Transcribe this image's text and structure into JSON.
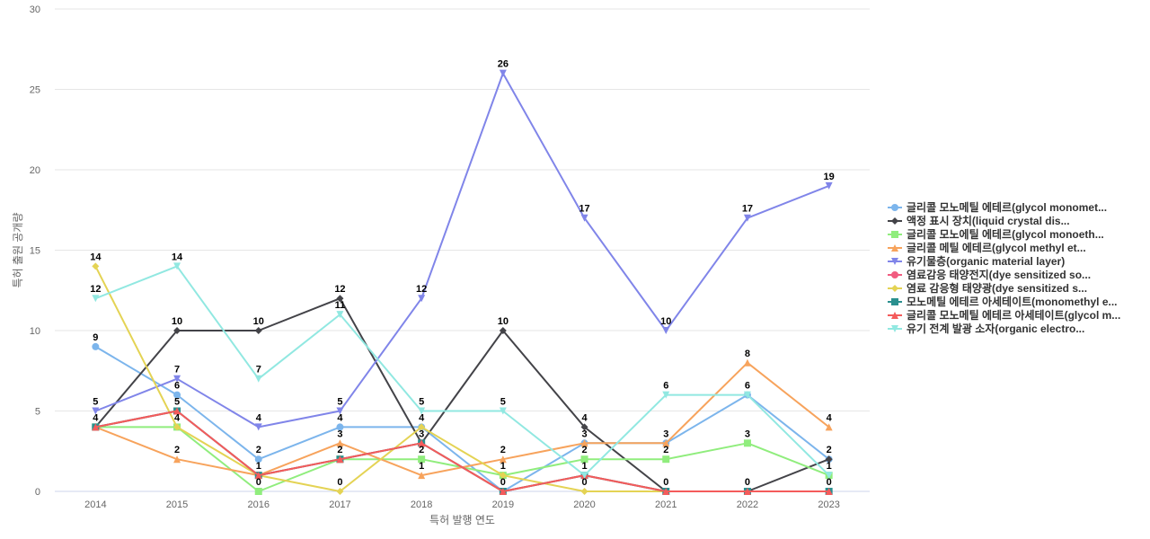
{
  "chart_data": {
    "type": "line",
    "title": "",
    "xlabel": "특허 발행 연도",
    "ylabel": "특허 출원 공개량",
    "categories": [
      "2014",
      "2015",
      "2016",
      "2017",
      "2018",
      "2019",
      "2020",
      "2021",
      "2022",
      "2023"
    ],
    "ylim": [
      0,
      30
    ],
    "yticks": [
      0,
      5,
      10,
      15,
      20,
      25,
      30
    ],
    "grid": true,
    "legend_position": "right",
    "series": [
      {
        "name": "글리콜 모노메틸 에테르(glycol monomet...",
        "color": "#7cb5ec",
        "marker": "circle",
        "values": [
          9,
          6,
          2,
          4,
          4,
          0,
          3,
          3,
          6,
          2
        ]
      },
      {
        "name": "액정 표시 장치(liquid crystal dis...",
        "color": "#434348",
        "marker": "diamond",
        "values": [
          4,
          10,
          10,
          12,
          3,
          10,
          4,
          0,
          0,
          2
        ]
      },
      {
        "name": "글리콜 모노에틸 에테르(glycol monoeth...",
        "color": "#90ed7d",
        "marker": "square",
        "values": [
          4,
          4,
          0,
          2,
          2,
          1,
          2,
          2,
          3,
          1
        ]
      },
      {
        "name": "글리콜 메틸 에테르(glycol methyl et...",
        "color": "#f7a35c",
        "marker": "triangle",
        "values": [
          4,
          2,
          1,
          3,
          1,
          2,
          3,
          3,
          8,
          4
        ]
      },
      {
        "name": "유기물층(organic material layer)",
        "color": "#8085e9",
        "marker": "triangle-down",
        "values": [
          5,
          7,
          4,
          5,
          12,
          26,
          17,
          10,
          17,
          19
        ]
      },
      {
        "name": "염료감응 태양전지(dye sensitized so...",
        "color": "#f15c80",
        "marker": "circle",
        "values": [
          4,
          5,
          1,
          2,
          3,
          0,
          1,
          0,
          0,
          0
        ]
      },
      {
        "name": "염료 감응형 태양광(dye sensitized s...",
        "color": "#e4d354",
        "marker": "diamond",
        "values": [
          14,
          4,
          1,
          0,
          4,
          1,
          0,
          0,
          0,
          0
        ]
      },
      {
        "name": "모노메틸 에테르 아세테이트(monomethyl e...",
        "color": "#2b908f",
        "marker": "square",
        "values": [
          4,
          5,
          1,
          2,
          3,
          0,
          1,
          0,
          0,
          0
        ]
      },
      {
        "name": "글리콜 모노메틸 에테르 아세테이트(glycol m...",
        "color": "#f45b5b",
        "marker": "triangle",
        "values": [
          4,
          5,
          1,
          2,
          3,
          0,
          1,
          0,
          0,
          0
        ]
      },
      {
        "name": "유기 전계 발광 소자(organic electro...",
        "color": "#91e8e1",
        "marker": "triangle-down",
        "values": [
          12,
          14,
          7,
          11,
          5,
          5,
          1,
          6,
          6,
          1
        ]
      }
    ],
    "point_labels": [
      {
        "category": "2014",
        "value": 14,
        "text": "14"
      },
      {
        "category": "2014",
        "value": 12,
        "text": "12"
      },
      {
        "category": "2014",
        "value": 9,
        "text": "9"
      },
      {
        "category": "2014",
        "value": 5,
        "text": "5"
      },
      {
        "category": "2014",
        "value": 4,
        "text": "4"
      },
      {
        "category": "2015",
        "value": 14,
        "text": "14"
      },
      {
        "category": "2015",
        "value": 10,
        "text": "10"
      },
      {
        "category": "2015",
        "value": 7,
        "text": "7"
      },
      {
        "category": "2015",
        "value": 6,
        "text": "6"
      },
      {
        "category": "2015",
        "value": 5,
        "text": "5"
      },
      {
        "category": "2015",
        "value": 4,
        "text": "4"
      },
      {
        "category": "2015",
        "value": 2,
        "text": "2"
      },
      {
        "category": "2016",
        "value": 10,
        "text": "10"
      },
      {
        "category": "2016",
        "value": 7,
        "text": "7"
      },
      {
        "category": "2016",
        "value": 4,
        "text": "4"
      },
      {
        "category": "2016",
        "value": 2,
        "text": "2"
      },
      {
        "category": "2016",
        "value": 1,
        "text": "1"
      },
      {
        "category": "2016",
        "value": 0,
        "text": "0"
      },
      {
        "category": "2017",
        "value": 12,
        "text": "12"
      },
      {
        "category": "2017",
        "value": 11,
        "text": "11"
      },
      {
        "category": "2017",
        "value": 5,
        "text": "5"
      },
      {
        "category": "2017",
        "value": 4,
        "text": "4"
      },
      {
        "category": "2017",
        "value": 3,
        "text": "3"
      },
      {
        "category": "2017",
        "value": 2,
        "text": "2"
      },
      {
        "category": "2017",
        "value": 0,
        "text": "0"
      },
      {
        "category": "2018",
        "value": 12,
        "text": "12"
      },
      {
        "category": "2018",
        "value": 5,
        "text": "5"
      },
      {
        "category": "2018",
        "value": 4,
        "text": "4"
      },
      {
        "category": "2018",
        "value": 3,
        "text": "3"
      },
      {
        "category": "2018",
        "value": 2,
        "text": "2"
      },
      {
        "category": "2018",
        "value": 1,
        "text": "1"
      },
      {
        "category": "2019",
        "value": 26,
        "text": "26"
      },
      {
        "category": "2019",
        "value": 10,
        "text": "10"
      },
      {
        "category": "2019",
        "value": 5,
        "text": "5"
      },
      {
        "category": "2019",
        "value": 2,
        "text": "2"
      },
      {
        "category": "2019",
        "value": 1,
        "text": "1"
      },
      {
        "category": "2019",
        "value": 0,
        "text": "0"
      },
      {
        "category": "2020",
        "value": 17,
        "text": "17"
      },
      {
        "category": "2020",
        "value": 4,
        "text": "4"
      },
      {
        "category": "2020",
        "value": 3,
        "text": "3"
      },
      {
        "category": "2020",
        "value": 2,
        "text": "2"
      },
      {
        "category": "2020",
        "value": 1,
        "text": "1"
      },
      {
        "category": "2020",
        "value": 0,
        "text": "0"
      },
      {
        "category": "2021",
        "value": 10,
        "text": "10"
      },
      {
        "category": "2021",
        "value": 6,
        "text": "6"
      },
      {
        "category": "2021",
        "value": 3,
        "text": "3"
      },
      {
        "category": "2021",
        "value": 2,
        "text": "2"
      },
      {
        "category": "2021",
        "value": 0,
        "text": "0"
      },
      {
        "category": "2022",
        "value": 17,
        "text": "17"
      },
      {
        "category": "2022",
        "value": 8,
        "text": "8"
      },
      {
        "category": "2022",
        "value": 6,
        "text": "6"
      },
      {
        "category": "2022",
        "value": 3,
        "text": "3"
      },
      {
        "category": "2022",
        "value": 0,
        "text": "0"
      },
      {
        "category": "2023",
        "value": 19,
        "text": "19"
      },
      {
        "category": "2023",
        "value": 4,
        "text": "4"
      },
      {
        "category": "2023",
        "value": 2,
        "text": "2"
      },
      {
        "category": "2023",
        "value": 1,
        "text": "1"
      },
      {
        "category": "2023",
        "value": 0,
        "text": "0"
      }
    ]
  }
}
